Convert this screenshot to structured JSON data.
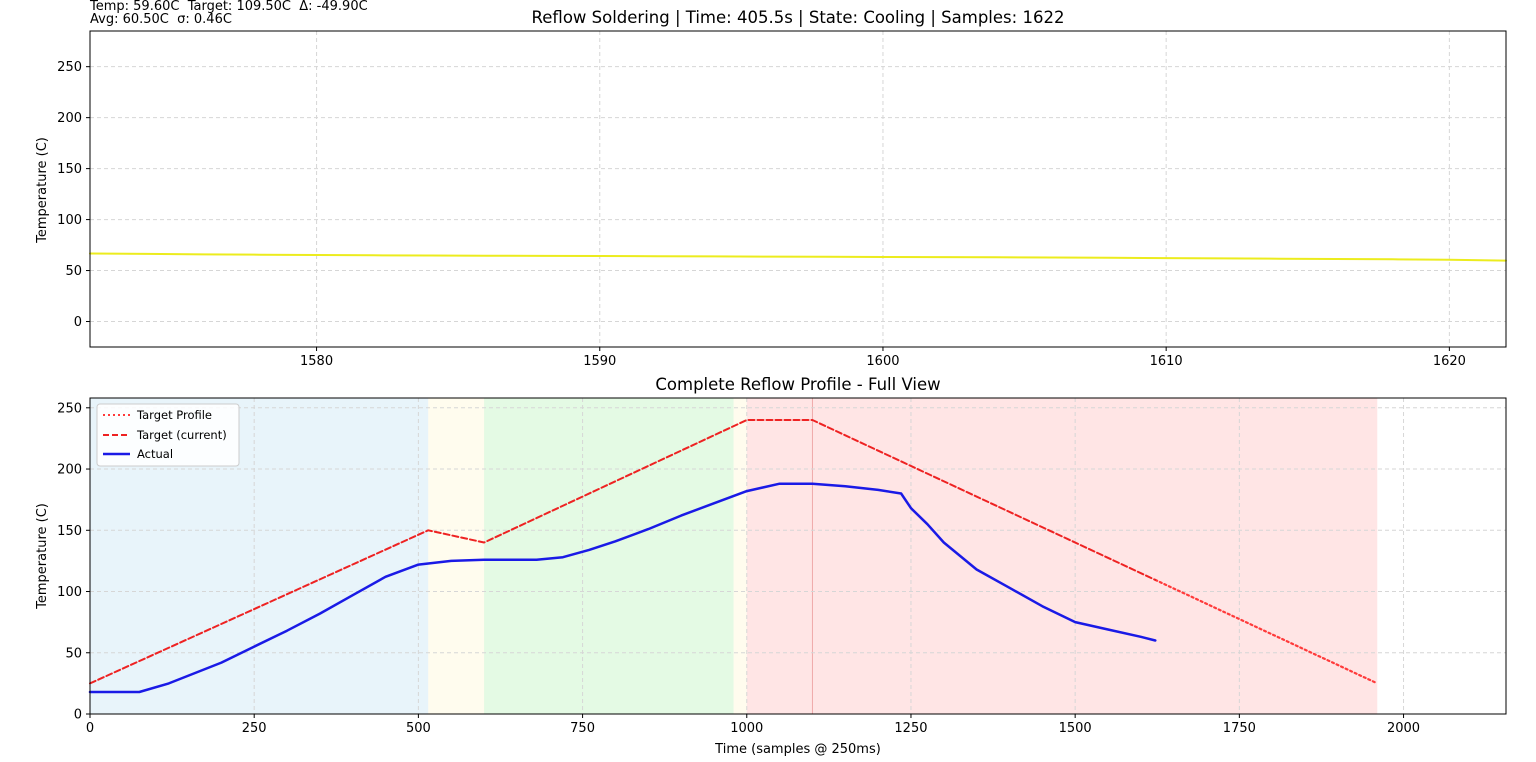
{
  "stats": {
    "line1": "Temp: 59.60C  Target: 109.50C  Δ: -49.90C",
    "line2": "Avg: 60.50C  σ: 0.46C"
  },
  "colors": {
    "zoom_line": "#ecec1e",
    "target_profile": "#ff3b3b",
    "target_current": "#ee2222",
    "actual": "#1a1ae6",
    "grid": "#d6d6d6",
    "zones": [
      "#d6ebf5",
      "#fff9e0",
      "#cdf5cd",
      "#fff9e0",
      "#ffcfcf"
    ]
  },
  "chart_data": [
    {
      "type": "line",
      "title": "Reflow Soldering  |  Time: 405.5s  |  State: Cooling  |  Samples: 1622",
      "xlabel": "",
      "ylabel": "Temperature (C)",
      "xlim": [
        1572,
        1622
      ],
      "ylim": [
        -25,
        285
      ],
      "xticks": [
        1580,
        1590,
        1600,
        1610,
        1620
      ],
      "yticks": [
        0,
        50,
        100,
        150,
        200,
        250
      ],
      "grid": true,
      "series": [
        {
          "color": "#ecec1e",
          "x": [
            1572,
            1574,
            1576,
            1578,
            1580,
            1582,
            1584,
            1586,
            1588,
            1590,
            1592,
            1594,
            1596,
            1598,
            1600,
            1602,
            1604,
            1606,
            1608,
            1610,
            1612,
            1614,
            1616,
            1618,
            1620,
            1622
          ],
          "y": [
            66.7,
            66.3,
            65.8,
            65.5,
            65.3,
            65.0,
            64.8,
            64.6,
            64.4,
            64.3,
            64.1,
            63.9,
            63.7,
            63.5,
            63.3,
            63.2,
            63.0,
            62.8,
            62.5,
            62.2,
            61.9,
            61.6,
            61.3,
            61.0,
            60.6,
            59.8
          ]
        }
      ]
    },
    {
      "type": "line",
      "title": "Complete Reflow Profile - Full View",
      "xlabel": "Time (samples @ 250ms)",
      "ylabel": "Temperature (C)",
      "xlim": [
        0,
        2156
      ],
      "ylim": [
        0,
        258
      ],
      "xticks": [
        0,
        250,
        500,
        750,
        1000,
        1250,
        1500,
        1750,
        2000
      ],
      "yticks": [
        0,
        50,
        100,
        150,
        200,
        250
      ],
      "grid": true,
      "legend": "top-left",
      "zones": [
        {
          "x0": 0,
          "x1": 515
        },
        {
          "x0": 515,
          "x1": 600
        },
        {
          "x0": 600,
          "x1": 980
        },
        {
          "x0": 980,
          "x1": 1000
        },
        {
          "x0": 1000,
          "x1": 1960
        }
      ],
      "zone_boundaries": [
        1100
      ],
      "series": [
        {
          "name": "Target Profile",
          "style": "dotted",
          "x": [
            1622,
            1960
          ],
          "y": [
            109.5,
            25
          ]
        },
        {
          "name": "Target (current)",
          "style": "dashed",
          "x": [
            0,
            515,
            600,
            1000,
            1100,
            1622
          ],
          "y": [
            25,
            150,
            140,
            240,
            240,
            109.5
          ]
        },
        {
          "name": "Actual",
          "style": "solid",
          "x": [
            0,
            75,
            120,
            200,
            250,
            300,
            350,
            400,
            450,
            500,
            550,
            600,
            680,
            720,
            760,
            800,
            850,
            900,
            950,
            1000,
            1050,
            1100,
            1150,
            1200,
            1235,
            1250,
            1275,
            1300,
            1350,
            1400,
            1450,
            1500,
            1550,
            1600,
            1622
          ],
          "y": [
            18,
            18,
            25,
            42,
            55,
            68,
            82,
            97,
            112,
            122,
            125,
            126,
            126,
            128,
            134,
            141,
            151,
            162,
            172,
            182,
            188,
            188,
            186,
            183,
            180,
            168,
            155,
            140,
            118,
            103,
            88,
            75,
            69,
            63,
            60
          ]
        }
      ]
    }
  ]
}
